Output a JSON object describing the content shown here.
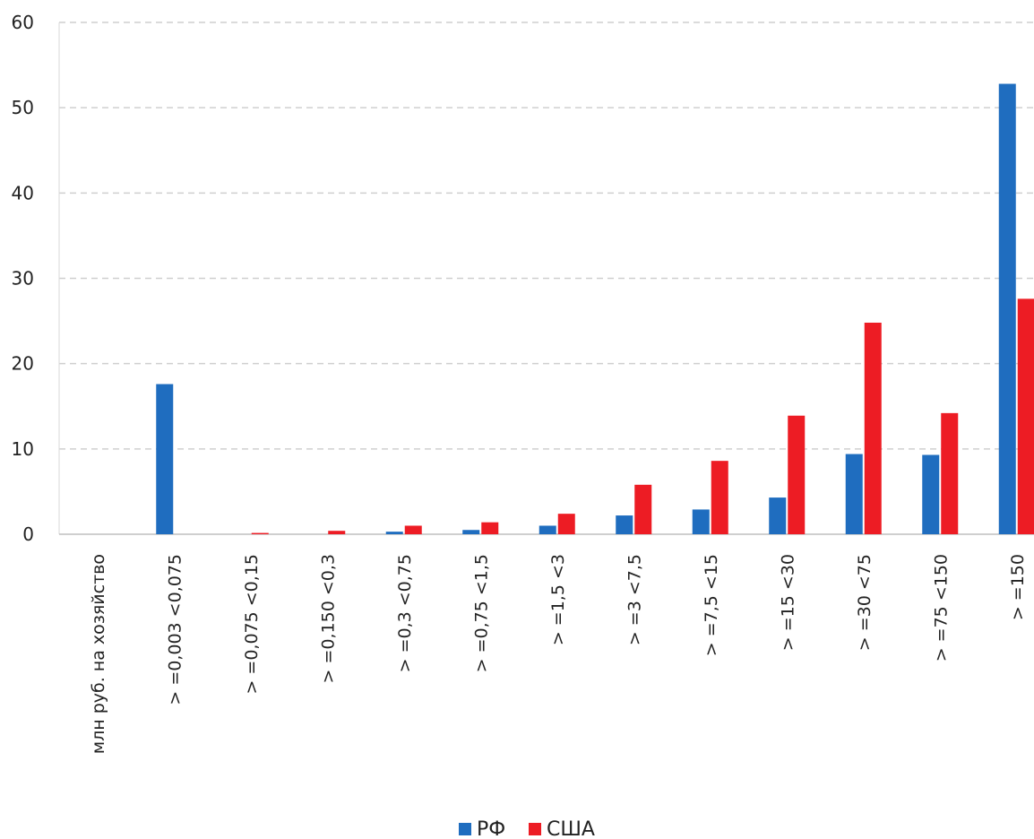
{
  "chart_data": {
    "type": "bar",
    "title": "",
    "xlabel": "",
    "ylabel": "",
    "ylim": [
      0,
      60
    ],
    "yticks": [
      0,
      10,
      20,
      30,
      40,
      50,
      60
    ],
    "grid": true,
    "legend_position": "bottom",
    "categories": [
      "млн руб. на хозяйство",
      "> =0,003 <0,075",
      "> =0,075 <0,15",
      "> =0,150 <0,3",
      "> =0,3 <0,75",
      "> =0,75 <1,5",
      "> =1,5 <3",
      "> =3 <7,5",
      "> =7,5 <15",
      "> =15 <30",
      "> =30 <75",
      "> =75 <150",
      "> =150"
    ],
    "series": [
      {
        "name": "РФ",
        "color": "#1f6dbf",
        "values": [
          0,
          17.6,
          0,
          0,
          0.3,
          0.5,
          1.0,
          2.2,
          2.9,
          4.3,
          9.4,
          9.3,
          52.8
        ]
      },
      {
        "name": "США",
        "color": "#ed1c24",
        "values": [
          0,
          0,
          0.15,
          0.4,
          1.0,
          1.4,
          2.4,
          5.8,
          8.6,
          13.9,
          24.8,
          14.2,
          27.6
        ]
      }
    ]
  }
}
